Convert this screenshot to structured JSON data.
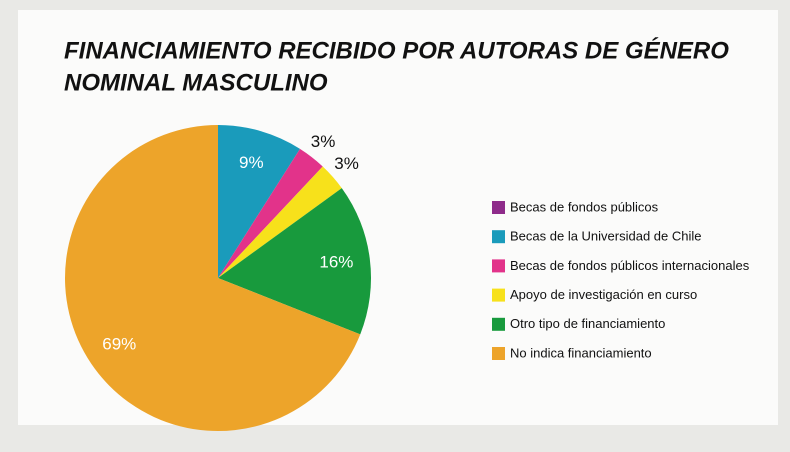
{
  "chart_data": {
    "type": "pie",
    "title": [
      "FINANCIAMIENTO RECIBIDO POR AUTORAS DE GÉNERO",
      "NOMINAL MASCULINO"
    ],
    "categories": [
      "Becas de fondos públicos",
      "Becas de la Universidad de Chile",
      "Becas de fondos públicos internacionales",
      "Apoyo de investigación en curso",
      "Otro tipo de financiamiento",
      "No indica financiamiento"
    ],
    "values": [
      0,
      9,
      3,
      3,
      16,
      69
    ],
    "value_labels": [
      null,
      "9%",
      "3%",
      "3%",
      "16%",
      "69%"
    ],
    "colors": [
      "#8e2b8a",
      "#1a9bbb",
      "#e2338a",
      "#f7e11b",
      "#189a3d",
      "#eda42a"
    ],
    "legend": "right"
  }
}
